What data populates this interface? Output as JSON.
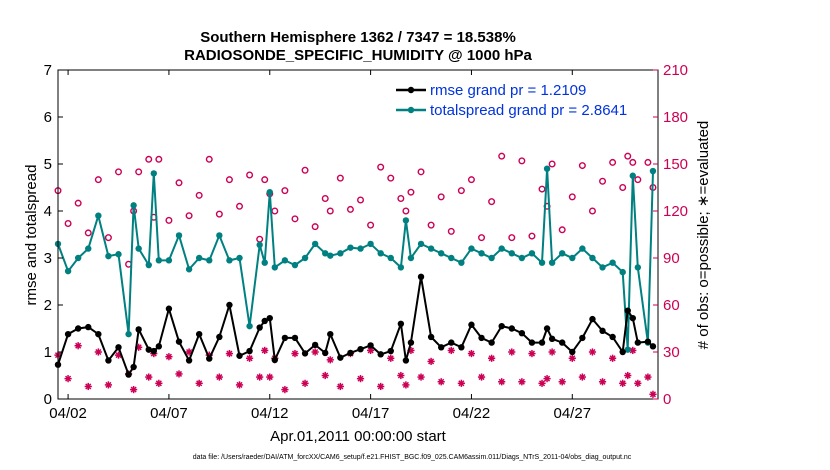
{
  "colors": {
    "rmse": "#000000",
    "spread": "#008080",
    "counts": "#cc0055",
    "legend_text": "#0033dd"
  },
  "chart_data": {
    "type": "line",
    "title": "Southern Hemisphere 1362 / 7347 = 18.538%",
    "subtitle": "RADIOSONDE_SPECIFIC_HUMIDITY @ 1000 hPa",
    "xlabel": "Apr.01,2011 00:00:00 start",
    "ylabel_left": "rmse and totalspread",
    "ylabel_right": "# of obs: o=possible; ∗=evaluated",
    "xlim": [
      1.5,
      31.25
    ],
    "ylim_left": [
      0,
      7
    ],
    "ylim_right": [
      0,
      210
    ],
    "xticks": [
      {
        "x": 2,
        "label": "04/02"
      },
      {
        "x": 7,
        "label": "04/07"
      },
      {
        "x": 12,
        "label": "04/12"
      },
      {
        "x": 17,
        "label": "04/17"
      },
      {
        "x": 22,
        "label": "04/22"
      },
      {
        "x": 27,
        "label": "04/27"
      }
    ],
    "yticks_left": [
      0,
      1,
      2,
      3,
      4,
      5,
      6,
      7
    ],
    "yticks_right": [
      0,
      30,
      60,
      90,
      120,
      150,
      180,
      210
    ],
    "legend": [
      "rmse grand pr = 1.2109",
      "totalspread grand pr = 2.8641"
    ],
    "footnote": "data file: /Users/raeder/DAI/ATM_forcXX/CAM6_setup/f.e21.FHIST_BGC.f09_025.CAM6assim.011/Diags_NTrS_2011-04/obs_diag_output.nc",
    "series": [
      {
        "name": "rmse",
        "points": [
          [
            1.5,
            0.73
          ],
          [
            2,
            1.38
          ],
          [
            2.5,
            1.5
          ],
          [
            3,
            1.53
          ],
          [
            3.5,
            1.38
          ],
          [
            4,
            0.82
          ],
          [
            4.5,
            1.1
          ],
          [
            5,
            0.52
          ],
          [
            5.25,
            0.68
          ],
          [
            5.5,
            1.48
          ],
          [
            6,
            1.05
          ],
          [
            6.25,
            1.02
          ],
          [
            6.5,
            1.12
          ],
          [
            7,
            1.92
          ],
          [
            7.5,
            1.22
          ],
          [
            8,
            0.82
          ],
          [
            8.5,
            1.38
          ],
          [
            9,
            0.86
          ],
          [
            9.5,
            1.32
          ],
          [
            10,
            2.0
          ],
          [
            10.5,
            0.92
          ],
          [
            11,
            1.02
          ],
          [
            11.5,
            1.52
          ],
          [
            11.75,
            1.66
          ],
          [
            12,
            1.72
          ],
          [
            12.25,
            0.83
          ],
          [
            12.75,
            1.3
          ],
          [
            13.25,
            1.3
          ],
          [
            13.75,
            0.97
          ],
          [
            14.25,
            1.15
          ],
          [
            14.75,
            0.98
          ],
          [
            15,
            1.38
          ],
          [
            15.5,
            0.88
          ],
          [
            16,
            0.98
          ],
          [
            16.5,
            1.06
          ],
          [
            17,
            1.14
          ],
          [
            17.5,
            0.95
          ],
          [
            18,
            1.02
          ],
          [
            18.5,
            1.6
          ],
          [
            18.75,
            0.82
          ],
          [
            19,
            1.2
          ],
          [
            19.5,
            2.6
          ],
          [
            20,
            1.32
          ],
          [
            20.5,
            1.1
          ],
          [
            21,
            1.2
          ],
          [
            21.5,
            1.1
          ],
          [
            22,
            1.58
          ],
          [
            22.5,
            1.3
          ],
          [
            23,
            1.2
          ],
          [
            23.5,
            1.55
          ],
          [
            24,
            1.5
          ],
          [
            24.5,
            1.4
          ],
          [
            25,
            1.2
          ],
          [
            25.5,
            1.2
          ],
          [
            25.75,
            1.5
          ],
          [
            26,
            1.28
          ],
          [
            26.5,
            1.2
          ],
          [
            27,
            1.0
          ],
          [
            27.5,
            1.3
          ],
          [
            28,
            1.7
          ],
          [
            28.5,
            1.45
          ],
          [
            29,
            1.32
          ],
          [
            29.5,
            1.0
          ],
          [
            29.75,
            1.88
          ],
          [
            30,
            1.72
          ],
          [
            30.25,
            1.2
          ],
          [
            30.75,
            1.22
          ],
          [
            31,
            1.12
          ]
        ]
      },
      {
        "name": "totalspread",
        "points": [
          [
            1.5,
            3.3
          ],
          [
            2,
            2.72
          ],
          [
            2.5,
            3.0
          ],
          [
            3,
            3.2
          ],
          [
            3.5,
            3.9
          ],
          [
            4,
            3.04
          ],
          [
            4.5,
            3.08
          ],
          [
            5,
            1.38
          ],
          [
            5.25,
            4.12
          ],
          [
            5.5,
            3.2
          ],
          [
            6,
            2.85
          ],
          [
            6.25,
            4.8
          ],
          [
            6.5,
            2.95
          ],
          [
            7,
            2.95
          ],
          [
            7.5,
            3.48
          ],
          [
            8,
            2.76
          ],
          [
            8.5,
            3.0
          ],
          [
            9,
            2.95
          ],
          [
            9.5,
            3.48
          ],
          [
            10,
            2.95
          ],
          [
            10.5,
            3.0
          ],
          [
            11,
            1.55
          ],
          [
            11.5,
            3.28
          ],
          [
            11.75,
            2.9
          ],
          [
            12,
            4.4
          ],
          [
            12.25,
            2.8
          ],
          [
            12.75,
            2.95
          ],
          [
            13.25,
            2.85
          ],
          [
            13.75,
            3.0
          ],
          [
            14.25,
            3.3
          ],
          [
            14.75,
            3.1
          ],
          [
            15,
            3.05
          ],
          [
            15.5,
            3.1
          ],
          [
            16,
            3.22
          ],
          [
            16.5,
            3.2
          ],
          [
            17,
            3.3
          ],
          [
            17.5,
            3.1
          ],
          [
            18,
            3.0
          ],
          [
            18.5,
            2.8
          ],
          [
            18.75,
            3.8
          ],
          [
            19,
            3.0
          ],
          [
            19.5,
            3.3
          ],
          [
            20,
            3.2
          ],
          [
            20.5,
            3.1
          ],
          [
            21,
            3.0
          ],
          [
            21.5,
            2.9
          ],
          [
            22,
            3.2
          ],
          [
            22.5,
            3.1
          ],
          [
            23,
            3.0
          ],
          [
            23.5,
            3.2
          ],
          [
            24,
            3.1
          ],
          [
            24.5,
            3.0
          ],
          [
            25,
            3.1
          ],
          [
            25.5,
            2.9
          ],
          [
            25.75,
            4.9
          ],
          [
            26,
            2.9
          ],
          [
            26.5,
            3.1
          ],
          [
            27,
            3.0
          ],
          [
            27.5,
            3.2
          ],
          [
            28,
            3.0
          ],
          [
            28.5,
            2.8
          ],
          [
            29,
            2.9
          ],
          [
            29.5,
            2.7
          ],
          [
            29.75,
            1.05
          ],
          [
            30,
            4.75
          ],
          [
            30.25,
            2.8
          ],
          [
            30.75,
            1.2
          ],
          [
            31,
            4.85
          ]
        ]
      },
      {
        "name": "possible",
        "points": [
          [
            1.5,
            133
          ],
          [
            2,
            112
          ],
          [
            2.5,
            125
          ],
          [
            3,
            106
          ],
          [
            3.5,
            140
          ],
          [
            4,
            103
          ],
          [
            4.5,
            145
          ],
          [
            5,
            86
          ],
          [
            5.25,
            120
          ],
          [
            5.5,
            145
          ],
          [
            6,
            153
          ],
          [
            6.25,
            116
          ],
          [
            6.5,
            153
          ],
          [
            7,
            114
          ],
          [
            7.5,
            138
          ],
          [
            8,
            117
          ],
          [
            8.5,
            130
          ],
          [
            9,
            153
          ],
          [
            9.5,
            118
          ],
          [
            10,
            140
          ],
          [
            10.5,
            123
          ],
          [
            11,
            143
          ],
          [
            11.5,
            102
          ],
          [
            11.75,
            140
          ],
          [
            12,
            131
          ],
          [
            12.25,
            120
          ],
          [
            12.75,
            133
          ],
          [
            13.25,
            115
          ],
          [
            13.75,
            146
          ],
          [
            14.25,
            110
          ],
          [
            14.75,
            128
          ],
          [
            15,
            120
          ],
          [
            15.5,
            141
          ],
          [
            16,
            121
          ],
          [
            16.5,
            127
          ],
          [
            17,
            111
          ],
          [
            17.5,
            148
          ],
          [
            18,
            141
          ],
          [
            18.5,
            128
          ],
          [
            18.75,
            120
          ],
          [
            19,
            132
          ],
          [
            19.5,
            145
          ],
          [
            20,
            111
          ],
          [
            20.5,
            129
          ],
          [
            21,
            107
          ],
          [
            21.5,
            133
          ],
          [
            22,
            140
          ],
          [
            22.5,
            103
          ],
          [
            23,
            126
          ],
          [
            23.5,
            155
          ],
          [
            24,
            103
          ],
          [
            24.5,
            152
          ],
          [
            25,
            104
          ],
          [
            25.5,
            134
          ],
          [
            25.75,
            123
          ],
          [
            26,
            150
          ],
          [
            26.5,
            108
          ],
          [
            27,
            129
          ],
          [
            27.5,
            149
          ],
          [
            28,
            120
          ],
          [
            28.5,
            139
          ],
          [
            29,
            151
          ],
          [
            29.5,
            135
          ],
          [
            29.75,
            155
          ],
          [
            30,
            151
          ],
          [
            30.25,
            140
          ],
          [
            30.75,
            151
          ],
          [
            31,
            135
          ]
        ]
      },
      {
        "name": "evaluated",
        "points": [
          [
            1.5,
            28
          ],
          [
            2,
            13
          ],
          [
            2.5,
            34
          ],
          [
            3,
            8
          ],
          [
            3.5,
            30
          ],
          [
            4,
            9
          ],
          [
            4.5,
            28
          ],
          [
            5,
            16
          ],
          [
            5.25,
            6
          ],
          [
            5.5,
            33
          ],
          [
            6,
            14
          ],
          [
            6.25,
            29
          ],
          [
            6.5,
            10
          ],
          [
            7,
            27
          ],
          [
            7.5,
            16
          ],
          [
            8,
            30
          ],
          [
            8.5,
            10
          ],
          [
            9,
            28
          ],
          [
            9.5,
            14
          ],
          [
            10,
            29
          ],
          [
            10.5,
            9
          ],
          [
            11,
            26
          ],
          [
            11.5,
            14
          ],
          [
            11.75,
            31
          ],
          [
            12,
            14
          ],
          [
            12.25,
            26
          ],
          [
            12.75,
            6
          ],
          [
            13.25,
            29
          ],
          [
            13.75,
            10
          ],
          [
            14.25,
            30
          ],
          [
            14.75,
            15
          ],
          [
            15,
            25
          ],
          [
            15.5,
            8
          ],
          [
            16,
            29
          ],
          [
            16.5,
            13
          ],
          [
            17,
            31
          ],
          [
            17.5,
            8
          ],
          [
            18,
            26
          ],
          [
            18.5,
            15
          ],
          [
            18.75,
            9
          ],
          [
            19,
            31
          ],
          [
            19.5,
            14
          ],
          [
            20,
            24
          ],
          [
            20.5,
            11
          ],
          [
            21,
            31
          ],
          [
            21.5,
            10
          ],
          [
            22,
            29
          ],
          [
            22.5,
            14
          ],
          [
            23,
            26
          ],
          [
            23.5,
            11
          ],
          [
            24,
            30
          ],
          [
            24.5,
            11
          ],
          [
            25,
            29
          ],
          [
            25.5,
            10
          ],
          [
            25.75,
            13
          ],
          [
            26,
            30
          ],
          [
            26.5,
            11
          ],
          [
            27,
            26
          ],
          [
            27.5,
            14
          ],
          [
            28,
            30
          ],
          [
            28.5,
            11
          ],
          [
            29,
            26
          ],
          [
            29.5,
            10
          ],
          [
            29.75,
            15
          ],
          [
            30,
            31
          ],
          [
            30.25,
            10
          ],
          [
            30.75,
            14
          ],
          [
            31,
            3
          ]
        ]
      }
    ]
  }
}
